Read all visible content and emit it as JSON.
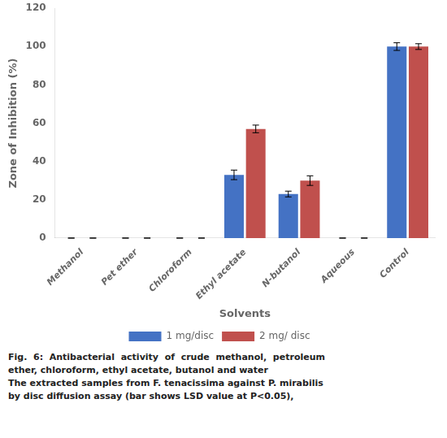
{
  "chart_data": {
    "type": "bar",
    "xlabel": "Solvents",
    "ylabel": "Zone of Inhibition (%)",
    "annotations": [
      "Fig.  6:  Antibacterial  activity  of  crude  methanol,  petroleum",
      "ether, chloroform, ethyl acetate, butanol and water",
      "The extracted samples from F. tenacissima against P. mirabilis",
      "by disc diffusion assay (bar shows LSD value at P<0.05),"
    ],
    "categories": [
      "Methanol",
      "Pet ether",
      "Chloroform",
      "Ethyl acetate",
      "N-butanol",
      "Aqueous",
      "Control"
    ],
    "series": [
      {
        "name": "1 mg/disc",
        "color": "#4472C4",
        "values": [
          0,
          0,
          0,
          33,
          23,
          0,
          100
        ],
        "errors": [
          0,
          0,
          0,
          2.5,
          1.5,
          0,
          2.0
        ]
      },
      {
        "name": "2 mg/ disc",
        "color": "#C0504D",
        "values": [
          0,
          0,
          0,
          57,
          30,
          0,
          100
        ],
        "errors": [
          0,
          0,
          0,
          2.0,
          2.5,
          0,
          1.5
        ]
      }
    ],
    "ylim": [
      0,
      120
    ],
    "yticks": [
      0,
      20,
      40,
      60,
      80,
      100,
      120
    ],
    "grid": false,
    "legend": "bottom"
  }
}
